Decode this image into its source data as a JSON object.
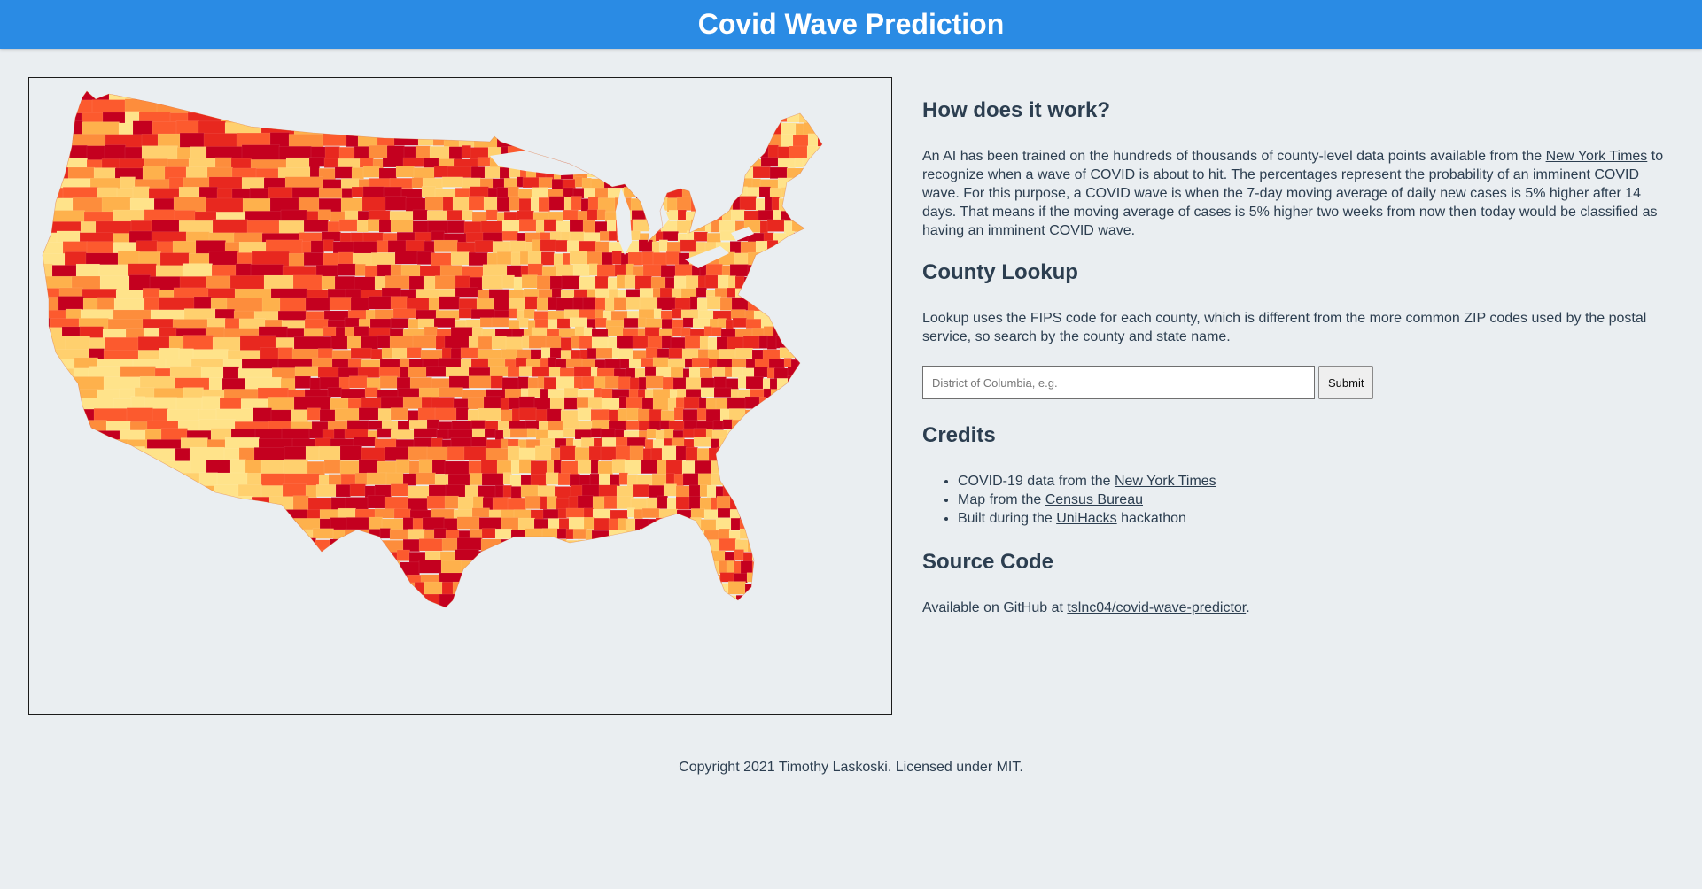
{
  "header": {
    "title": "Covid Wave Prediction"
  },
  "map": {
    "colors": [
      "#ffe38a",
      "#ffd06e",
      "#feb14c",
      "#fd8d3c",
      "#fc5a2e",
      "#e8281f",
      "#c4001f"
    ],
    "border_color": "#1b1b1b"
  },
  "how": {
    "heading": "How does it work?",
    "text_1": "An AI has been trained on the hundreds of thousands of county-level data points available from the ",
    "link": "New York Times",
    "text_2": " to recognize when a wave of COVID is about to hit. The percentages represent the probability of an imminent COVID wave. For this purpose, a COVID wave is when the 7-day moving average of daily new cases is 5% higher after 14 days. That means if the moving average of cases is 5% higher two weeks from now then today would be classified as having an imminent COVID wave."
  },
  "lookup": {
    "heading": "County Lookup",
    "text": "Lookup uses the FIPS code for each county, which is different from the more common ZIP codes used by the postal service, so search by the county and state name.",
    "placeholder": "District of Columbia, e.g.",
    "value": "",
    "submit_label": "Submit"
  },
  "credits": {
    "heading": "Credits",
    "items": [
      {
        "prefix": "COVID-19 data from the ",
        "link": "New York Times",
        "suffix": ""
      },
      {
        "prefix": "Map from the ",
        "link": "Census Bureau",
        "suffix": ""
      },
      {
        "prefix": "Built during the ",
        "link": "UniHacks",
        "suffix": " hackathon"
      }
    ]
  },
  "source": {
    "heading": "Source Code",
    "prefix": "Available on GitHub at ",
    "link": "tslnc04/covid-wave-predictor",
    "suffix": "."
  },
  "footer": {
    "text": "Copyright 2021 Timothy Laskoski. Licensed under MIT."
  }
}
